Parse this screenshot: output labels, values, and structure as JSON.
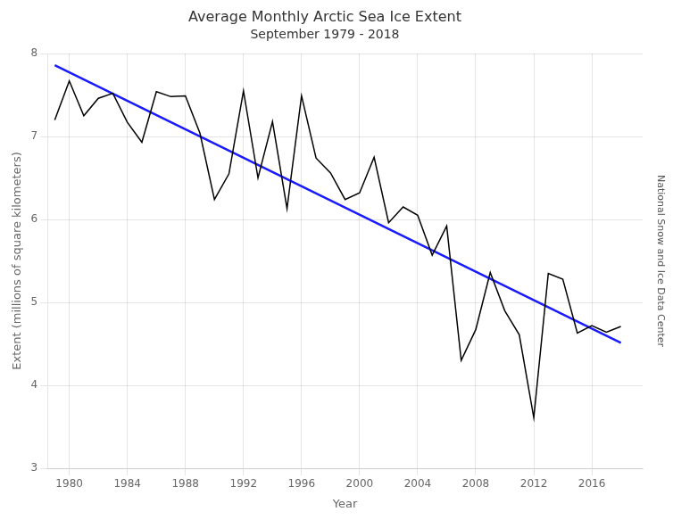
{
  "chart_data": {
    "type": "line",
    "title": "Average Monthly Arctic Sea Ice Extent",
    "subtitle": "September 1979 - 2018",
    "xlabel": "Year",
    "ylabel": "Extent (millions of square kilometers)",
    "annotation": "National Snow and Ice Data Center",
    "series": [
      {
        "x": [
          1979,
          1980,
          1981,
          1982,
          1983,
          1984,
          1985,
          1986,
          1987,
          1988,
          1989,
          1990,
          1991,
          1992,
          1993,
          1994,
          1995,
          1996,
          1997,
          1998,
          1999,
          2000,
          2001,
          2002,
          2003,
          2004,
          2005,
          2006,
          2007,
          2008,
          2009,
          2010,
          2011,
          2012,
          2013,
          2014,
          2015,
          2016,
          2017,
          2018
        ],
        "values": [
          7.2,
          7.67,
          7.25,
          7.46,
          7.52,
          7.17,
          6.93,
          7.54,
          7.48,
          7.49,
          7.04,
          6.24,
          6.55,
          7.55,
          6.5,
          7.18,
          6.13,
          7.49,
          6.74,
          6.56,
          6.24,
          6.32,
          6.75,
          5.96,
          6.15,
          6.05,
          5.57,
          5.92,
          4.3,
          4.67,
          5.36,
          4.9,
          4.61,
          3.61,
          5.35,
          5.28,
          4.63,
          4.72,
          4.64,
          4.71
        ],
        "color": "#000000"
      },
      {
        "x": [
          1979,
          2018
        ],
        "values": [
          7.8581,
          4.5134
        ],
        "color": "#1a1aff"
      }
    ],
    "xlim": [
      1978.5,
      2019.5
    ],
    "xticks": [
      1980,
      1984,
      1988,
      1992,
      1996,
      2000,
      2004,
      2008,
      2012,
      2016
    ],
    "ylim": [
      3.0,
      8.0
    ],
    "yticks": [
      3,
      4,
      5,
      6,
      7,
      8
    ],
    "grid": true
  }
}
